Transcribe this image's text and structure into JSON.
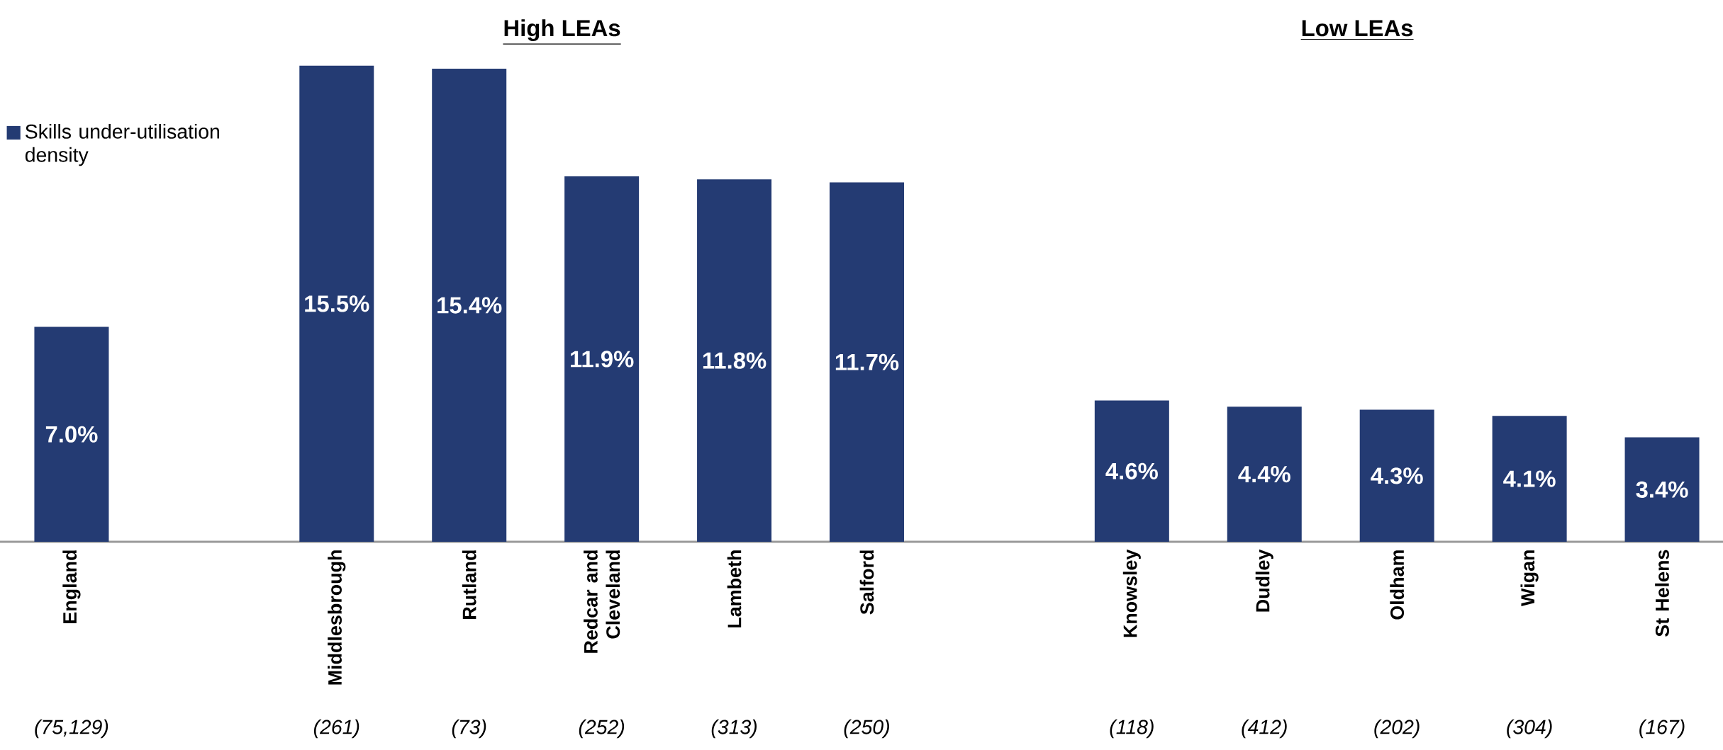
{
  "chart_data": {
    "type": "bar",
    "categories": [
      "England",
      null,
      "Middlesbrough",
      "Rutland",
      "Redcar and Cleveland",
      "Lambeth",
      "Salford",
      null,
      "Knowsley",
      "Dudley",
      "Oldham",
      "Wigan",
      "St Helens"
    ],
    "series": [
      {
        "name": "Skills under-utilisation density",
        "color": "#243b73",
        "values": [
          7.0,
          null,
          15.5,
          15.4,
          11.9,
          11.8,
          11.7,
          null,
          4.6,
          4.4,
          4.3,
          4.1,
          3.4
        ],
        "value_labels": [
          "7.0%",
          null,
          "15.5%",
          "15.4%",
          "11.9%",
          "11.8%",
          "11.7%",
          null,
          "4.6%",
          "4.4%",
          "4.3%",
          "4.1%",
          "3.4%"
        ]
      }
    ],
    "legend": "top left",
    "annotations": [
      "**High LEAs**",
      "**Low LEAs**",
      "*(75,129)*",
      "*(261)*",
      "*(73)*",
      "*(252)*",
      "*(313)*",
      "*(250)*",
      "*(118)*",
      "*(412)*",
      "*(202)*",
      "*(304)*",
      "*(167)*"
    ]
  }
}
